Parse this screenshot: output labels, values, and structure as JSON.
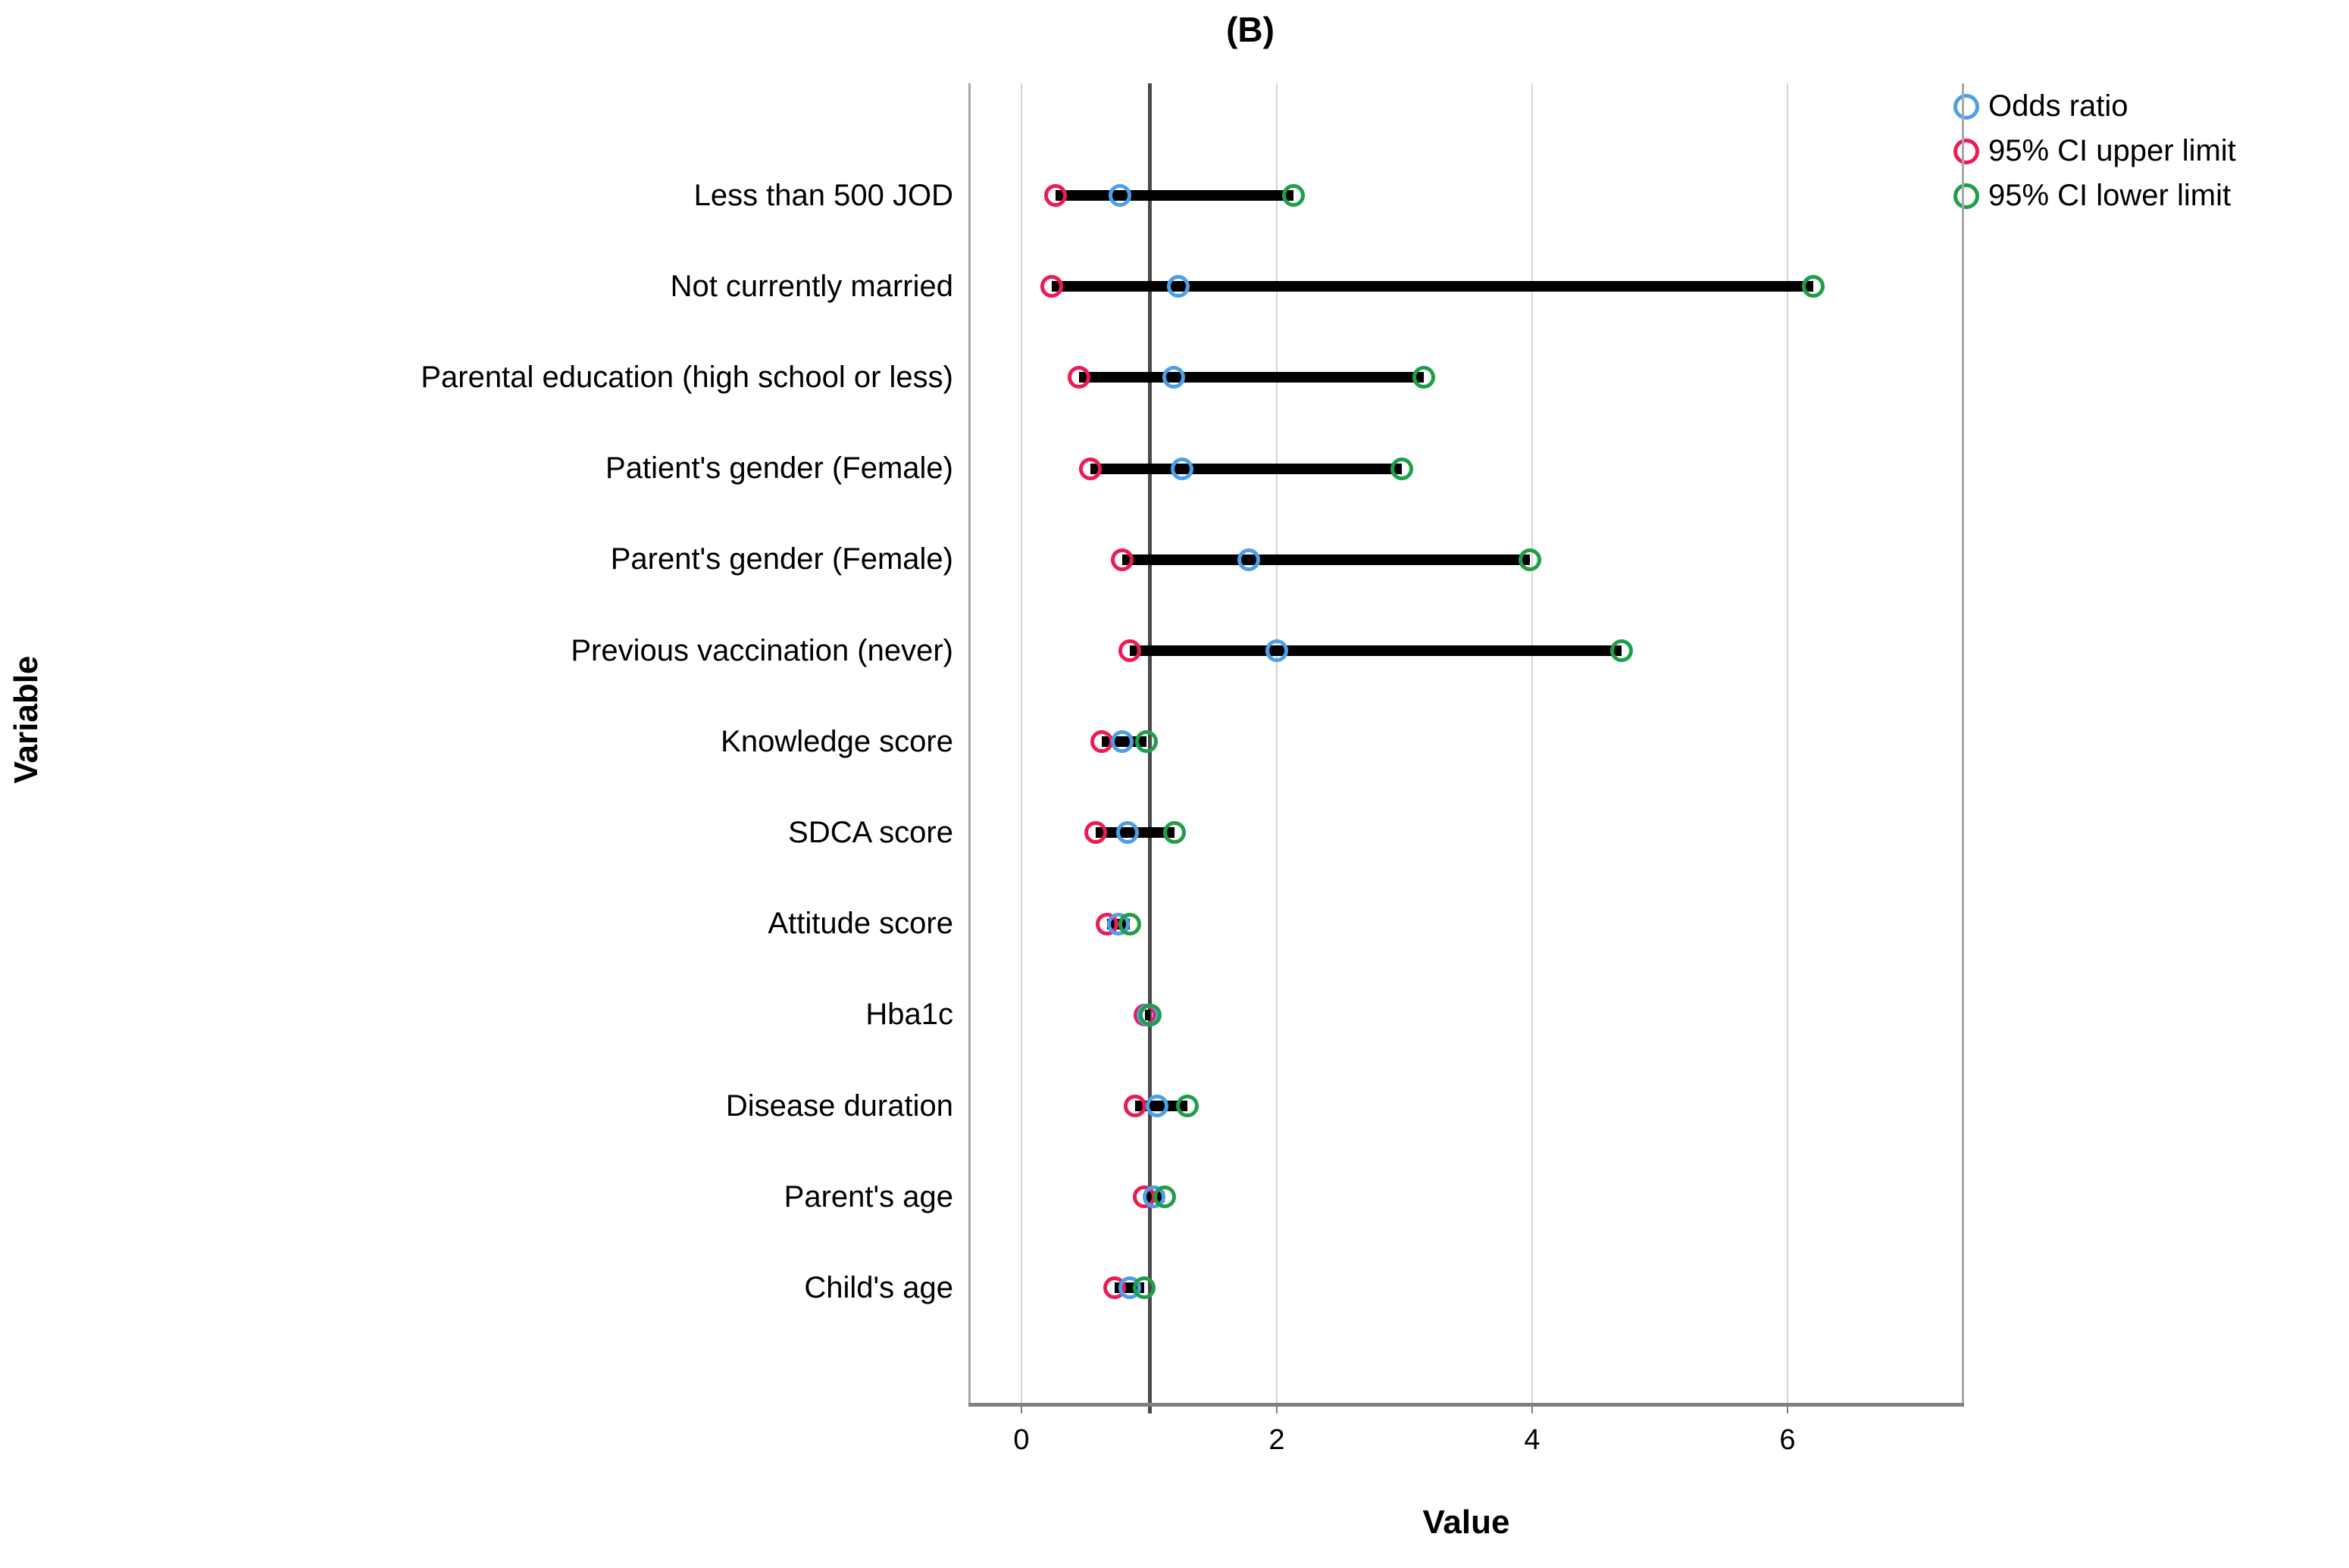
{
  "title": "(B)",
  "axes": {
    "x_label": "Value",
    "y_label": "Variable"
  },
  "legend": [
    {
      "label": "Odds ratio",
      "color": "#4E9FE8"
    },
    {
      "label": "95% CI upper limit",
      "color": "#ED1B54"
    },
    {
      "label": "95% CI lower limit",
      "color": "#209E4A"
    }
  ],
  "chart_data": {
    "type": "scatter",
    "subtype": "forest-dot-interval",
    "title": "(B)",
    "xlabel": "Value",
    "ylabel": "Variable",
    "x_ticks": [
      0,
      2,
      4,
      6
    ],
    "xlim": [
      -0.42,
      7.4
    ],
    "reference_line_x": 1,
    "grid": "vertical-only",
    "legend_position": "top-right",
    "interval_bar_color": "#000000",
    "categories": [
      "Less than 500 JOD",
      "Not currently married",
      "Parental education (high school or less)",
      "Patient's gender (Female)",
      "Parent's gender (Female)",
      "Previous vaccination (never)",
      "Knowledge score",
      "SDCA score",
      "Attitude score",
      "Hba1c",
      "Disease duration",
      "Parent's age",
      "Child's age"
    ],
    "series": [
      {
        "name": "Odds ratio",
        "marker": "open-circle",
        "color": "#4E9FE8",
        "values": [
          0.77,
          1.23,
          1.19,
          1.26,
          1.78,
          2.0,
          0.79,
          0.83,
          0.76,
          0.99,
          1.06,
          1.04,
          0.85
        ]
      },
      {
        "name": "95% CI upper limit",
        "marker": "open-circle",
        "color": "#ED1B54",
        "values": [
          0.27,
          0.24,
          0.45,
          0.54,
          0.79,
          0.85,
          0.63,
          0.58,
          0.67,
          0.97,
          0.89,
          0.96,
          0.73
        ]
      },
      {
        "name": "95% CI lower limit",
        "marker": "open-circle",
        "color": "#209E4A",
        "values": [
          2.13,
          6.2,
          3.15,
          2.98,
          3.98,
          4.7,
          0.98,
          1.2,
          0.85,
          1.01,
          1.3,
          1.12,
          0.96
        ]
      }
    ]
  }
}
